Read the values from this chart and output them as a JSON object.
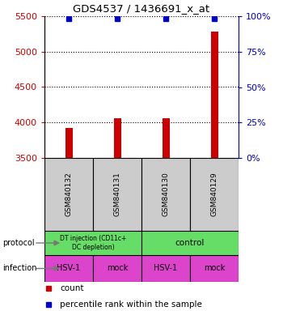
{
  "title": "GDS4537 / 1436691_x_at",
  "samples": [
    "GSM840132",
    "GSM840131",
    "GSM840130",
    "GSM840129"
  ],
  "counts": [
    3920,
    4060,
    4060,
    5280
  ],
  "percentile_ranks": [
    98,
    98,
    98,
    98
  ],
  "ylim_left": [
    3500,
    5500
  ],
  "ylim_right": [
    0,
    100
  ],
  "yticks_left": [
    3500,
    4000,
    4500,
    5000,
    5500
  ],
  "yticks_right": [
    0,
    25,
    50,
    75,
    100
  ],
  "bar_color": "#cc0000",
  "percentile_color": "#0000cc",
  "left_axis_color": "#cc0000",
  "right_axis_color": "#0000cc",
  "protocol_label1": "DT injection (CD11c+\nDC depletion)",
  "protocol_label2": "control",
  "protocol_color1": "#66dd66",
  "protocol_color2": "#66dd66",
  "infection_labels": [
    "HSV-1",
    "mock",
    "HSV-1",
    "mock"
  ],
  "infection_color_hsv": "#dd44cc",
  "infection_color_mock": "#dd44cc",
  "sample_box_color": "#cccccc",
  "legend_count_color": "#cc0000",
  "legend_pct_color": "#0000cc",
  "bar_width": 0.15
}
